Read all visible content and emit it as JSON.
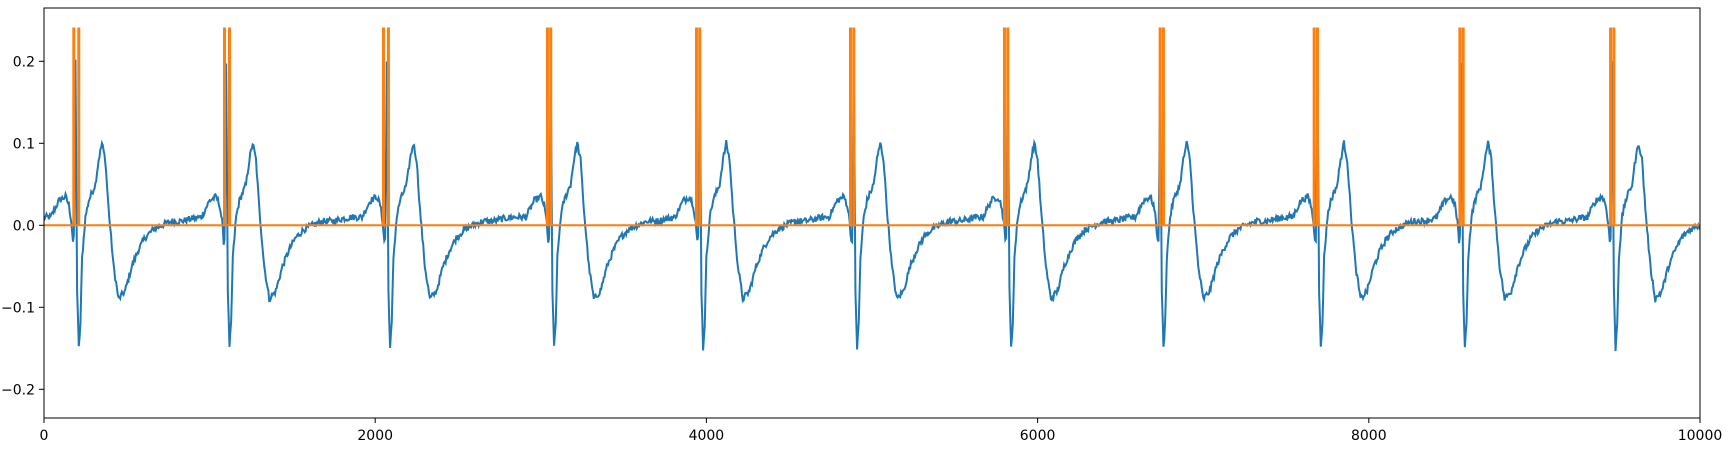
{
  "chart_data": {
    "type": "line",
    "title": "",
    "xlabel": "",
    "ylabel": "",
    "xlim": [
      0,
      10000
    ],
    "ylim": [
      -0.235,
      0.265
    ],
    "grid": false,
    "legend": "none",
    "x_ticks": [
      0,
      2000,
      4000,
      6000,
      8000,
      10000
    ],
    "x_tick_labels": [
      "0",
      "2000",
      "4000",
      "6000",
      "8000",
      "10000"
    ],
    "y_ticks": [
      -0.2,
      -0.1,
      0.0,
      0.1,
      0.2
    ],
    "y_tick_labels": [
      "−0.2",
      "−0.1",
      "0.0",
      "0.1",
      "0.2"
    ],
    "series": [
      {
        "color": "#1f77b4",
        "cycle_template": {
          "offsets": [
            -150,
            -100,
            -60,
            -40,
            -25,
            -15,
            -8,
            0,
            10,
            20,
            30,
            40,
            60,
            80,
            100,
            120,
            140,
            160,
            180,
            200,
            230,
            260,
            300,
            340,
            380,
            420,
            470,
            520,
            580,
            640,
            700,
            760
          ],
          "values": [
            0.01,
            0.03,
            0.035,
            0.025,
            0.005,
            -0.02,
            -0.015,
            0.2,
            -0.08,
            -0.15,
            -0.12,
            -0.04,
            0.01,
            0.03,
            0.04,
            0.05,
            0.08,
            0.1,
            0.08,
            0.02,
            -0.05,
            -0.09,
            -0.08,
            -0.05,
            -0.03,
            -0.015,
            -0.005,
            0.0,
            0.005,
            0.005,
            0.008,
            0.01
          ]
        },
        "r_peaks": [
          190,
          1100,
          2070,
          3060,
          3960,
          4890,
          5820,
          6740,
          7690,
          8560,
          9470
        ]
      },
      {
        "color": "#ff7f0e",
        "pulse_height": 0.24,
        "pulse_pairs": [
          [
            180,
            210
          ],
          [
            1090,
            1120
          ],
          [
            2050,
            2080
          ],
          [
            3040,
            3060
          ],
          [
            3940,
            3960
          ],
          [
            4870,
            4890
          ],
          [
            5800,
            5820
          ],
          [
            6740,
            6760
          ],
          [
            7670,
            7690
          ],
          [
            8550,
            8570
          ],
          [
            9460,
            9480
          ]
        ],
        "baseline": 0.0
      }
    ]
  }
}
